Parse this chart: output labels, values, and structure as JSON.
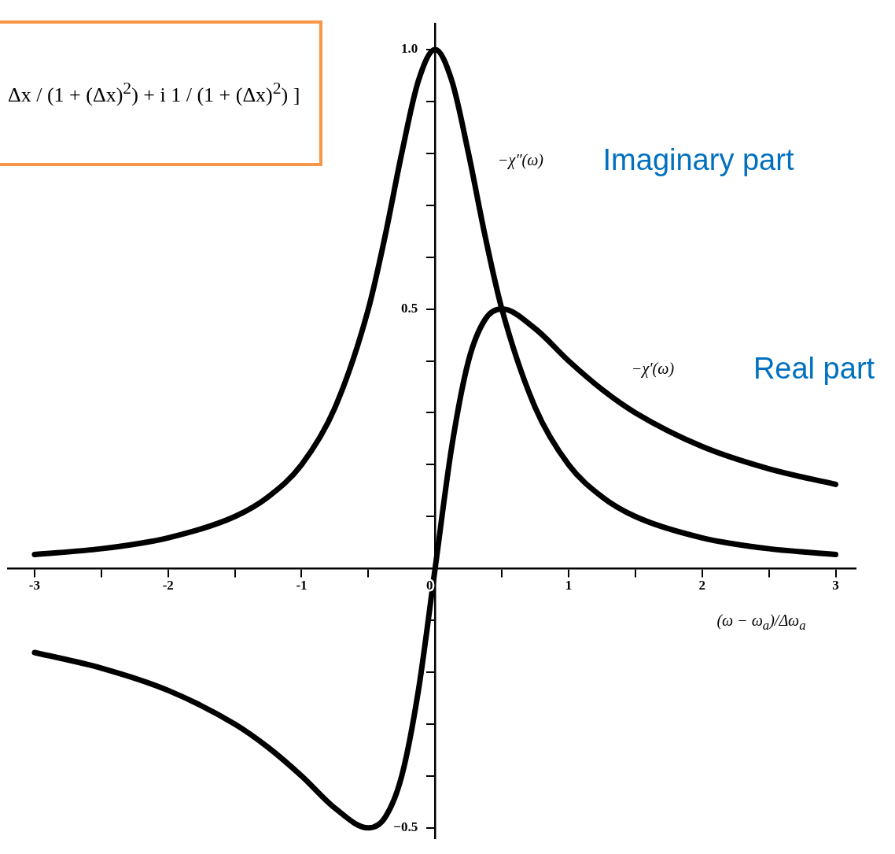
{
  "chart_data": {
    "type": "line",
    "xlabel": "(ω − ω$_{a}$)/Δω$_{a}$",
    "x": [
      -3,
      -2.5,
      -2,
      -1.5,
      -1.25,
      -1,
      -0.75,
      -0.5,
      -0.375,
      -0.25,
      -0.125,
      0,
      0.125,
      0.25,
      0.375,
      0.5,
      0.75,
      1,
      1.25,
      1.5,
      2,
      2.5,
      3
    ],
    "series": [
      {
        "color": "#000000",
        "values": [
          0.027,
          0.038,
          0.059,
          0.1,
          0.138,
          0.2,
          0.31,
          0.5,
          0.64,
          0.8,
          0.94,
          1.0,
          0.94,
          0.8,
          0.64,
          0.5,
          0.31,
          0.2,
          0.138,
          0.1,
          0.059,
          0.038,
          0.027
        ]
      },
      {
        "color": "#000000",
        "values": [
          -0.162,
          -0.192,
          -0.235,
          -0.3,
          -0.345,
          -0.4,
          -0.462,
          -0.5,
          -0.48,
          -0.4,
          -0.235,
          0,
          0.235,
          0.4,
          0.48,
          0.5,
          0.462,
          0.4,
          0.345,
          0.3,
          0.235,
          0.192,
          0.162
        ]
      }
    ],
    "xlim": [
      -3.2,
      3.15
    ],
    "ylim": [
      -0.52,
      1.05
    ],
    "xticks": [
      -3,
      {
        "value": -2.5,
        "label": null
      },
      -2,
      {
        "value": -1.5,
        "label": null
      },
      -1,
      {
        "value": -0.5,
        "label": null
      },
      0,
      {
        "value": 0.5,
        "label": null
      },
      1,
      {
        "value": 1.5,
        "label": null
      },
      2,
      {
        "value": 2.5,
        "label": null
      },
      3
    ],
    "yticks": [
      {
        "value": -0.5,
        "label": "−0.5"
      },
      {
        "value": -0.4,
        "label": null
      },
      {
        "value": -0.3,
        "label": null
      },
      {
        "value": -0.2,
        "label": null
      },
      {
        "value": -0.1,
        "label": null
      },
      {
        "value": 0.1,
        "label": null
      },
      {
        "value": 0.2,
        "label": null
      },
      {
        "value": 0.3,
        "label": null
      },
      {
        "value": 0.4,
        "label": null
      },
      {
        "value": 0.5,
        "label": "0.5"
      },
      {
        "value": 0.6,
        "label": null
      },
      {
        "value": 0.7,
        "label": null
      },
      {
        "value": 0.8,
        "label": null
      },
      {
        "value": 0.9,
        "label": null
      },
      {
        "value": 1.0,
        "label": "1.0"
      }
    ],
    "grid": false,
    "legend": false,
    "marker": "none",
    "line_style": "solid",
    "annotations": [
      "Δx / (1 + (Δx)$^{2}$)  +  i  1 / (1 + (Δx)$^{2}$) ]",
      "−χ″(ω)",
      "Imaginary part",
      "−χ′(ω)",
      "Real part"
    ]
  }
}
